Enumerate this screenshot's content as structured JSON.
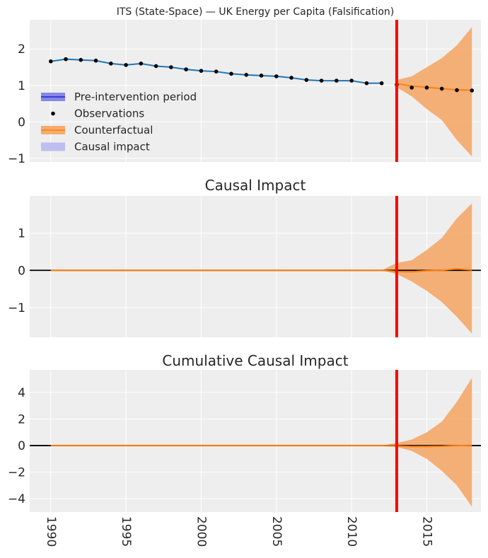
{
  "figure": {
    "title": "ITS (State-Space) — UK Energy per Capita (Falsification)"
  },
  "colors": {
    "background": "#eeeeee",
    "grid": "#ffffff",
    "pre_line": "#1f77b4",
    "counterfactual": "#ff7f0e",
    "band": "#f5a361",
    "observations": "#000000",
    "intervention": "#ff0000",
    "zero_line": "#000000",
    "legend_pre": "#6b6fe0",
    "legend_impact": "#b8b8ef"
  },
  "legend": {
    "placement": "center-left",
    "entries": [
      {
        "label": "Pre-intervention period",
        "kind": "pre"
      },
      {
        "label": "Observations",
        "kind": "obs"
      },
      {
        "label": "Counterfactual",
        "kind": "cf"
      },
      {
        "label": "Causal impact",
        "kind": "impact"
      }
    ]
  },
  "chart_data": [
    {
      "type": "line",
      "title": "ITS (State-Space) — UK Energy per Capita (Falsification)",
      "xlabel": "",
      "ylabel": "",
      "xlim": [
        1988.6,
        2018.6
      ],
      "ylim": [
        -1.1,
        2.8
      ],
      "yticks": [
        -1,
        0,
        1,
        2
      ],
      "xticks": [
        1990,
        1995,
        2000,
        2005,
        2010,
        2015
      ],
      "grid": true,
      "intervention_x": 2013,
      "observations": {
        "x": [
          1990,
          1991,
          1992,
          1993,
          1994,
          1995,
          1996,
          1997,
          1998,
          1999,
          2000,
          2001,
          2002,
          2003,
          2004,
          2005,
          2006,
          2007,
          2008,
          2009,
          2010,
          2011,
          2012,
          2013,
          2014,
          2015,
          2016,
          2017,
          2018
        ],
        "y": [
          1.66,
          1.72,
          1.7,
          1.68,
          1.6,
          1.56,
          1.6,
          1.53,
          1.5,
          1.44,
          1.4,
          1.38,
          1.32,
          1.29,
          1.27,
          1.25,
          1.21,
          1.15,
          1.13,
          1.13,
          1.13,
          1.06,
          1.06,
          1.02,
          0.94,
          0.94,
          0.91,
          0.87,
          0.86
        ]
      },
      "series": [
        {
          "name": "Pre-intervention period",
          "x": [
            1990,
            1991,
            1992,
            1993,
            1994,
            1995,
            1996,
            1997,
            1998,
            1999,
            2000,
            2001,
            2002,
            2003,
            2004,
            2005,
            2006,
            2007,
            2008,
            2009,
            2010,
            2011,
            2012
          ],
          "y": [
            1.66,
            1.72,
            1.7,
            1.68,
            1.6,
            1.56,
            1.6,
            1.53,
            1.5,
            1.44,
            1.4,
            1.38,
            1.32,
            1.29,
            1.27,
            1.25,
            1.21,
            1.15,
            1.13,
            1.13,
            1.13,
            1.06,
            1.06
          ]
        },
        {
          "name": "Counterfactual",
          "x": [
            2013,
            2014,
            2015,
            2016,
            2017,
            2018
          ],
          "y": [
            1.05,
            0.98,
            0.95,
            0.91,
            0.88,
            0.87
          ],
          "lower": [
            0.95,
            0.7,
            0.35,
            0.05,
            -0.5,
            -0.95
          ],
          "upper": [
            1.15,
            1.25,
            1.5,
            1.75,
            2.1,
            2.6
          ]
        }
      ]
    },
    {
      "type": "area",
      "title": "Causal Impact",
      "xlim": [
        1988.6,
        2018.6
      ],
      "ylim": [
        -1.8,
        2.0
      ],
      "yticks": [
        -1,
        0,
        1
      ],
      "grid": true,
      "intervention_x": 2013,
      "series": [
        {
          "x": [
            1990,
            1991,
            1992,
            1993,
            1994,
            1995,
            1996,
            1997,
            1998,
            1999,
            2000,
            2001,
            2002,
            2003,
            2004,
            2005,
            2006,
            2007,
            2008,
            2009,
            2010,
            2011,
            2012,
            2013,
            2014,
            2015,
            2016,
            2017,
            2018
          ],
          "y": [
            0,
            0,
            0,
            0,
            0,
            0,
            0,
            0,
            0,
            0,
            0,
            0,
            0,
            0,
            0,
            0,
            0,
            0,
            0,
            0,
            0,
            0,
            0,
            -0.03,
            -0.04,
            -0.01,
            0.0,
            0.04,
            0.01
          ],
          "lower": [
            0,
            0,
            0,
            0,
            0,
            0,
            0,
            0,
            0,
            0,
            0,
            0,
            0,
            0,
            0,
            0,
            0,
            0,
            0,
            0,
            0,
            0,
            0,
            -0.1,
            -0.3,
            -0.55,
            -0.85,
            -1.25,
            -1.7
          ],
          "upper": [
            0,
            0,
            0,
            0,
            0,
            0,
            0,
            0,
            0,
            0,
            0,
            0,
            0,
            0,
            0,
            0,
            0,
            0,
            0,
            0,
            0,
            0,
            0,
            0.2,
            0.27,
            0.55,
            0.87,
            1.4,
            1.8
          ]
        }
      ]
    },
    {
      "type": "area",
      "title": "Cumulative Causal Impact",
      "xlim": [
        1988.6,
        2018.6
      ],
      "ylim": [
        -5.0,
        5.7
      ],
      "yticks": [
        -4,
        -2,
        0,
        2,
        4
      ],
      "grid": true,
      "intervention_x": 2013,
      "series": [
        {
          "x": [
            1990,
            1991,
            1992,
            1993,
            1994,
            1995,
            1996,
            1997,
            1998,
            1999,
            2000,
            2001,
            2002,
            2003,
            2004,
            2005,
            2006,
            2007,
            2008,
            2009,
            2010,
            2011,
            2012,
            2013,
            2014,
            2015,
            2016,
            2017,
            2018
          ],
          "y": [
            0,
            0,
            0,
            0,
            0,
            0,
            0,
            0,
            0,
            0,
            0,
            0,
            0,
            0,
            0,
            0,
            0,
            0,
            0,
            0,
            0,
            0,
            0,
            -0.03,
            -0.07,
            -0.06,
            -0.05,
            0.0,
            0.02
          ],
          "lower": [
            0,
            0,
            0,
            0,
            0,
            0,
            0,
            0,
            0,
            0,
            0,
            0,
            0,
            0,
            0,
            0,
            0,
            0,
            0,
            0,
            0,
            0,
            0,
            -0.1,
            -0.4,
            -1.0,
            -1.9,
            -3.0,
            -4.6
          ],
          "upper": [
            0,
            0,
            0,
            0,
            0,
            0,
            0,
            0,
            0,
            0,
            0,
            0,
            0,
            0,
            0,
            0,
            0,
            0,
            0,
            0,
            0,
            0,
            0,
            0.2,
            0.45,
            1.0,
            1.8,
            3.3,
            5.1
          ]
        }
      ]
    }
  ]
}
